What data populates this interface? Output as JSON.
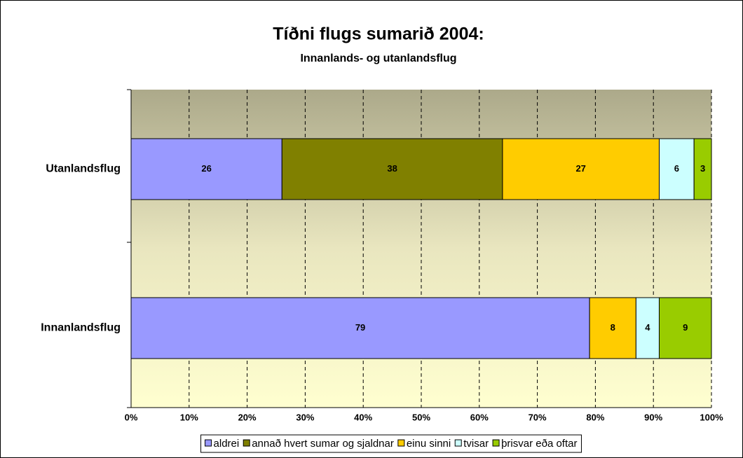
{
  "chart_data": {
    "type": "stacked_bar_horizontal_100",
    "title": "Tíðni flugs sumarið 2004:",
    "subtitle": "Innanlands- og utanlandsflug",
    "categories": [
      "Utanlandsflug",
      "Innanlandsflug"
    ],
    "series": [
      {
        "name": "aldrei",
        "color": "#9999ff",
        "values": [
          26,
          79
        ]
      },
      {
        "name": "annað hvert sumar og sjaldnar",
        "color": "#808000",
        "values": [
          38,
          0
        ]
      },
      {
        "name": "einu sinni",
        "color": "#ffcc00",
        "values": [
          27,
          8
        ]
      },
      {
        "name": "tvisar",
        "color": "#ccffff",
        "values": [
          6,
          4
        ]
      },
      {
        "name": "þrisvar eða oftar",
        "color": "#99cc00",
        "values": [
          3,
          9
        ]
      }
    ],
    "xlim": [
      0,
      100
    ],
    "xticks": [
      {
        "value": 0,
        "label": "0%"
      },
      {
        "value": 10,
        "label": "10%"
      },
      {
        "value": 20,
        "label": "20%"
      },
      {
        "value": 30,
        "label": "30%"
      },
      {
        "value": 40,
        "label": "40%"
      },
      {
        "value": 50,
        "label": "50%"
      },
      {
        "value": 60,
        "label": "60%"
      },
      {
        "value": 70,
        "label": "70%"
      },
      {
        "value": 80,
        "label": "80%"
      },
      {
        "value": 90,
        "label": "90%"
      },
      {
        "value": 100,
        "label": "100%"
      }
    ],
    "grid": true,
    "legend": "bottom"
  }
}
